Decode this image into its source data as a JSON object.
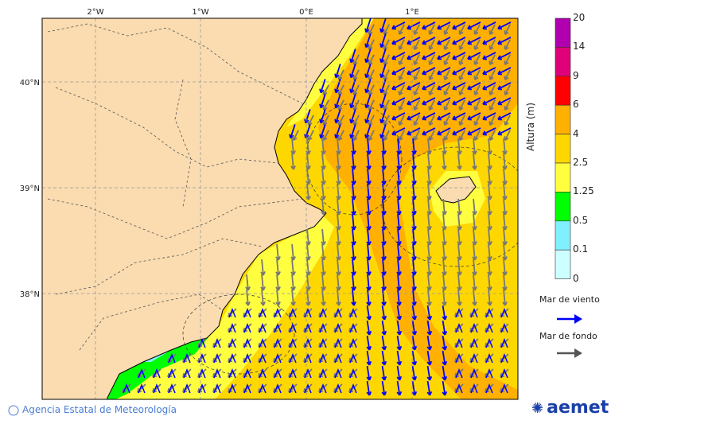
{
  "map": {
    "lon_labels": [
      "2°W",
      "1°W",
      "0°E",
      "1°E"
    ],
    "lat_labels": [
      "40°N",
      "39°N",
      "38°N"
    ],
    "colors": {
      "land": "#fadcb0",
      "sea_light_yellow": "#ffff40",
      "sea_gold": "#ffd700",
      "sea_orange": "#ffb000",
      "green": "#00ff00",
      "cyan": "#80f0ff"
    }
  },
  "colorbar": {
    "title": "Altura (m)",
    "ticks": [
      "20",
      "14",
      "9",
      "6",
      "4",
      "2.5",
      "1.25",
      "0.5",
      "0.1",
      "0"
    ],
    "colors": [
      "#b000b0",
      "#e0007a",
      "#ff0000",
      "#ffb000",
      "#ffd700",
      "#ffff40",
      "#00ff00",
      "#80f0ff",
      "#ccffff"
    ]
  },
  "legend": {
    "wind_sea": {
      "label": "Mar de viento",
      "color": "#0000ff"
    },
    "swell": {
      "label": "Mar de fondo",
      "color": "#555555"
    }
  },
  "footer": {
    "credit": "Agencia Estatal de Meteorología",
    "logo": "aemet"
  }
}
